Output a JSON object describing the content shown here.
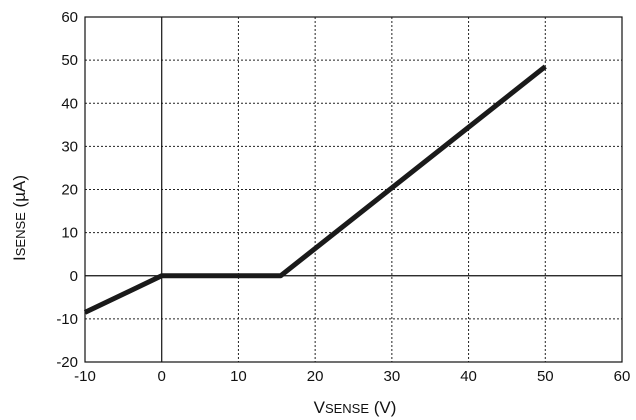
{
  "chart_data": {
    "type": "line",
    "xlabel": {
      "main": "V",
      "sub": "SENSE",
      "unit": " (V)"
    },
    "ylabel": {
      "main": "I",
      "sub": "SENSE",
      "unit": " (µA)"
    },
    "xlim": [
      -10,
      60
    ],
    "ylim": [
      -20,
      60
    ],
    "x_ticks": [
      -10,
      0,
      10,
      20,
      30,
      40,
      50,
      60
    ],
    "y_ticks": [
      -20,
      -10,
      0,
      10,
      20,
      30,
      40,
      50,
      60
    ],
    "grid": true,
    "series": [
      {
        "color": "#1a1a1a",
        "points": [
          [
            -10,
            -8.5
          ],
          [
            0,
            0
          ],
          [
            15.5,
            0
          ],
          [
            50,
            48.5
          ]
        ]
      }
    ]
  }
}
